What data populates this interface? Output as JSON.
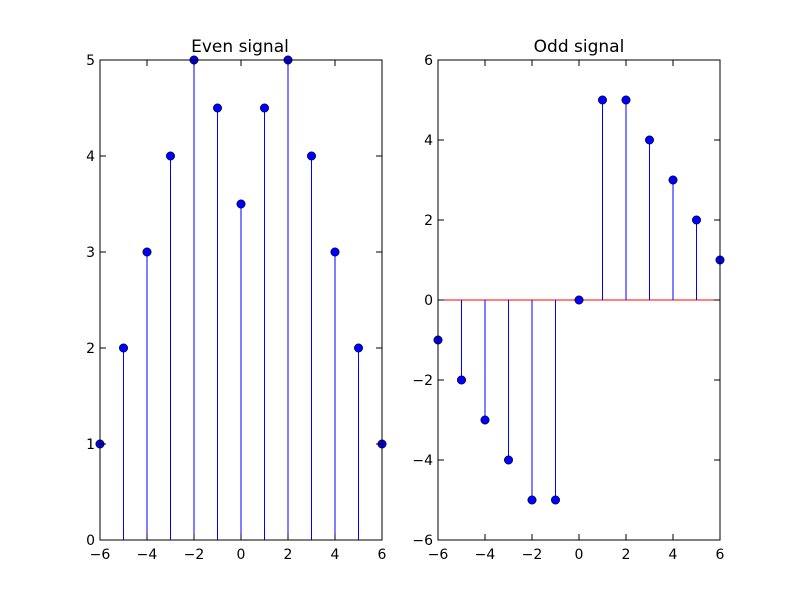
{
  "chart_data": [
    {
      "type": "stem",
      "title": "Even signal",
      "xlabel": "",
      "ylabel": "",
      "xlim": [
        -6,
        6
      ],
      "ylim": [
        0,
        5
      ],
      "x_ticks": [
        -6,
        -4,
        -2,
        0,
        2,
        4,
        6
      ],
      "y_ticks": [
        0,
        1,
        2,
        3,
        4,
        5
      ],
      "x_tick_labels": [
        "−6",
        "−4",
        "−2",
        "0",
        "2",
        "4",
        "6"
      ],
      "y_tick_labels": [
        "0",
        "1",
        "2",
        "3",
        "4",
        "5"
      ],
      "grid": false,
      "baseline": null,
      "stem_color": "#0000ff",
      "marker_color": "#0000ff",
      "series": [
        {
          "x": [
            -6,
            -5,
            -4,
            -3,
            -2,
            -1,
            0,
            1,
            2,
            3,
            4,
            5,
            6
          ],
          "y": [
            1,
            2,
            3,
            4,
            5,
            4.5,
            3.5,
            4.5,
            5,
            4,
            3,
            2,
            1
          ]
        }
      ]
    },
    {
      "type": "stem",
      "title": "Odd signal",
      "xlabel": "",
      "ylabel": "",
      "xlim": [
        -6,
        6
      ],
      "ylim": [
        -6,
        6
      ],
      "x_ticks": [
        -6,
        -4,
        -2,
        0,
        2,
        4,
        6
      ],
      "y_ticks": [
        -6,
        -4,
        -2,
        0,
        2,
        4,
        6
      ],
      "x_tick_labels": [
        "−6",
        "−4",
        "−2",
        "0",
        "2",
        "4",
        "6"
      ],
      "y_tick_labels": [
        "−6",
        "−4",
        "−2",
        "0",
        "2",
        "4",
        "6"
      ],
      "grid": false,
      "baseline": 0,
      "baseline_color": "#ff0000",
      "stem_color": "#0000ff",
      "marker_color": "#0000ff",
      "series": [
        {
          "x": [
            -6,
            -5,
            -4,
            -3,
            -2,
            -1,
            0,
            1,
            2,
            3,
            4,
            5,
            6
          ],
          "y": [
            -1,
            -2,
            -3,
            -4,
            -5,
            -5,
            0,
            5,
            5,
            4,
            3,
            2,
            1
          ]
        }
      ]
    }
  ]
}
